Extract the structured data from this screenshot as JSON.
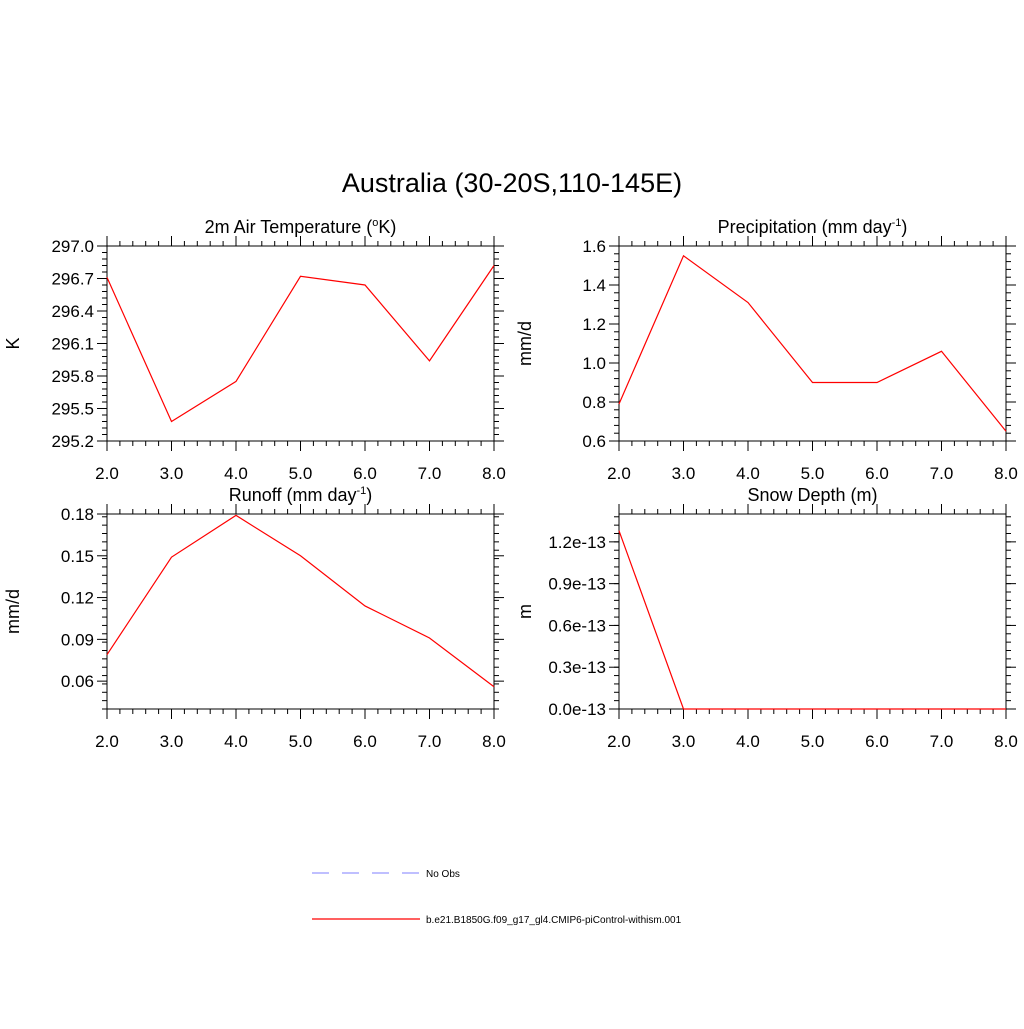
{
  "figure": {
    "title": "Australia (30-20S,110-145E)"
  },
  "legend": {
    "entries": [
      {
        "label": "No Obs",
        "color": "#9999ff",
        "style": "dashed"
      },
      {
        "label": "b.e21.B1850G.f09_g17_gl4.CMIP6-piControl-withism.001",
        "color": "#ff0000",
        "style": "solid"
      }
    ]
  },
  "chart_data": [
    {
      "type": "line",
      "title": "2m Air Temperature (",
      "title_sup": "o",
      "title_after": "K)",
      "xlabel": "",
      "ylabel": "K",
      "xlim": [
        2.0,
        8.0
      ],
      "ylim": [
        295.2,
        297.0
      ],
      "xticks": [
        2.0,
        3.0,
        4.0,
        5.0,
        6.0,
        7.0,
        8.0
      ],
      "xtick_labels": [
        "2.0",
        "3.0",
        "4.0",
        "5.0",
        "6.0",
        "7.0",
        "8.0"
      ],
      "yticks": [
        295.2,
        295.5,
        295.8,
        296.1,
        296.4,
        296.7,
        297.0
      ],
      "ytick_labels": [
        "295.2",
        "295.5",
        "295.8",
        "296.1",
        "296.4",
        "296.7",
        "297.0"
      ],
      "minor_step": 0.06,
      "x": [
        2.0,
        3.0,
        4.0,
        5.0,
        6.0,
        7.0,
        8.0
      ],
      "series": [
        {
          "name": "b.e21.B1850G.f09_g17_gl4.CMIP6-piControl-withism.001",
          "color": "#ff0000",
          "values": [
            296.71,
            295.38,
            295.75,
            296.72,
            296.64,
            295.94,
            296.82
          ]
        }
      ]
    },
    {
      "type": "line",
      "title": "Precipitation (mm day",
      "title_sup": "-1",
      "title_after": ")",
      "xlabel": "",
      "ylabel": "mm/d",
      "xlim": [
        2.0,
        8.0
      ],
      "ylim": [
        0.6,
        1.6
      ],
      "xticks": [
        2.0,
        3.0,
        4.0,
        5.0,
        6.0,
        7.0,
        8.0
      ],
      "xtick_labels": [
        "2.0",
        "3.0",
        "4.0",
        "5.0",
        "6.0",
        "7.0",
        "8.0"
      ],
      "yticks": [
        0.6,
        0.8,
        1.0,
        1.2,
        1.4,
        1.6
      ],
      "ytick_labels": [
        "0.6",
        "0.8",
        "1.0",
        "1.2",
        "1.4",
        "1.6"
      ],
      "minor_step": 0.04,
      "x": [
        2.0,
        3.0,
        4.0,
        5.0,
        6.0,
        7.0,
        8.0
      ],
      "series": [
        {
          "name": "b.e21.B1850G.f09_g17_gl4.CMIP6-piControl-withism.001",
          "color": "#ff0000",
          "values": [
            0.79,
            1.55,
            1.31,
            0.9,
            0.9,
            1.06,
            0.65
          ]
        }
      ]
    },
    {
      "type": "line",
      "title": "Runoff (mm day",
      "title_sup": "-1",
      "title_after": ")",
      "xlabel": "",
      "ylabel": "mm/d",
      "xlim": [
        2.0,
        8.0
      ],
      "ylim": [
        0.04,
        0.18
      ],
      "xticks": [
        2.0,
        3.0,
        4.0,
        5.0,
        6.0,
        7.0,
        8.0
      ],
      "xtick_labels": [
        "2.0",
        "3.0",
        "4.0",
        "5.0",
        "6.0",
        "7.0",
        "8.0"
      ],
      "yticks": [
        0.06,
        0.09,
        0.12,
        0.15,
        0.18
      ],
      "ytick_labels": [
        "0.06",
        "0.09",
        "0.12",
        "0.15",
        "0.18"
      ],
      "minor_step": 0.006,
      "x": [
        2.0,
        3.0,
        4.0,
        5.0,
        6.0,
        7.0,
        8.0
      ],
      "series": [
        {
          "name": "b.e21.B1850G.f09_g17_gl4.CMIP6-piControl-withism.001",
          "color": "#ff0000",
          "values": [
            0.079,
            0.149,
            0.179,
            0.15,
            0.114,
            0.091,
            0.056
          ]
        }
      ]
    },
    {
      "type": "line",
      "title": "Snow Depth (m)",
      "title_sup": "",
      "title_after": "",
      "xlabel": "",
      "ylabel": "m",
      "xlim": [
        2.0,
        8.0
      ],
      "ylim": [
        0.0,
        1.4e-13
      ],
      "xticks": [
        2.0,
        3.0,
        4.0,
        5.0,
        6.0,
        7.0,
        8.0
      ],
      "xtick_labels": [
        "2.0",
        "3.0",
        "4.0",
        "5.0",
        "6.0",
        "7.0",
        "8.0"
      ],
      "yticks": [
        0.0,
        3e-14,
        6e-14,
        9e-14,
        1.2e-13
      ],
      "ytick_labels": [
        "0.0e-13",
        "0.3e-13",
        "0.6e-13",
        "0.9e-13",
        "1.2e-13"
      ],
      "minor_step": 6e-15,
      "x": [
        2.0,
        3.0,
        4.0,
        5.0,
        6.0,
        7.0,
        8.0
      ],
      "series": [
        {
          "name": "b.e21.B1850G.f09_g17_gl4.CMIP6-piControl-withism.001",
          "color": "#ff0000",
          "values": [
            1.28e-13,
            0.0,
            0.0,
            0.0,
            0.0,
            0.0,
            0.0
          ]
        }
      ]
    }
  ]
}
